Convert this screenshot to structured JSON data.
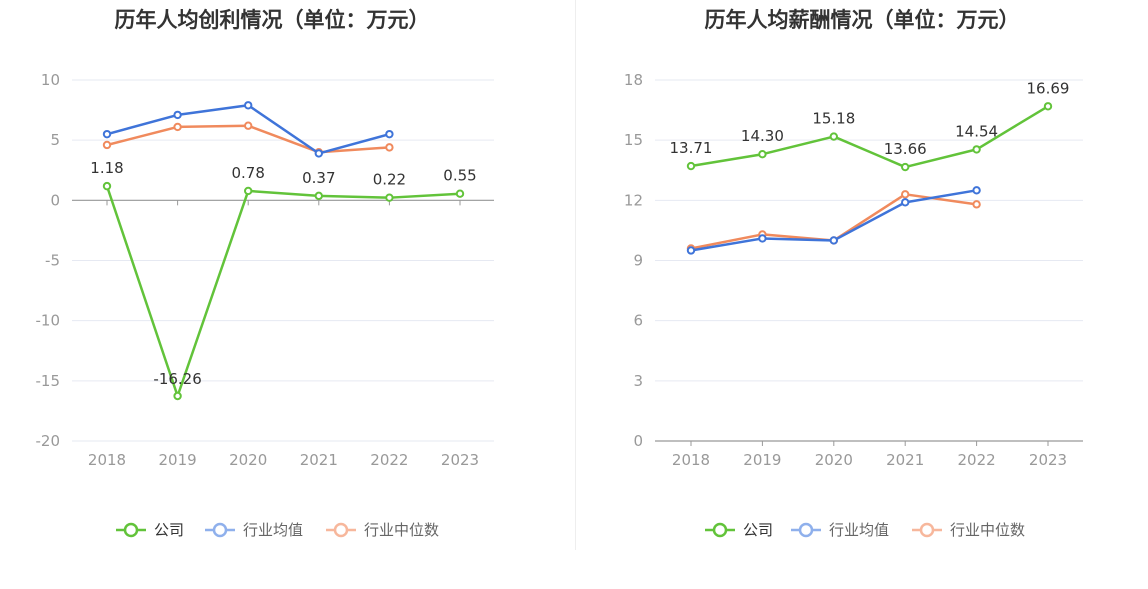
{
  "chart_data": [
    {
      "type": "line",
      "title": "历年人均创利情况（单位：万元）",
      "categories": [
        "2018",
        "2019",
        "2020",
        "2021",
        "2022",
        "2023"
      ],
      "ylim": [
        -20,
        10
      ],
      "yticks": [
        "10",
        "5",
        "0",
        "-5",
        "-10",
        "-15",
        "-20"
      ],
      "grid": true,
      "legend_position": "bottom-center",
      "series": [
        {
          "name": "公司",
          "color": "#62c33a",
          "values": [
            1.18,
            -16.26,
            0.78,
            0.37,
            0.22,
            0.55
          ],
          "labels": [
            "1.18",
            "-16.26",
            "0.78",
            "0.37",
            "0.22",
            "0.55"
          ]
        },
        {
          "name": "行业均值",
          "color": "#3f74d9",
          "values": [
            5.5,
            7.1,
            7.9,
            3.9,
            5.5,
            null
          ]
        },
        {
          "name": "行业中位数",
          "color": "#f08a5d",
          "values": [
            4.6,
            6.1,
            6.2,
            4.0,
            4.4,
            null
          ]
        }
      ]
    },
    {
      "type": "line",
      "title": "历年人均薪酬情况（单位：万元）",
      "categories": [
        "2018",
        "2019",
        "2020",
        "2021",
        "2022",
        "2023"
      ],
      "ylim": [
        0,
        18
      ],
      "yticks": [
        "18",
        "15",
        "12",
        "9",
        "6",
        "3",
        "0"
      ],
      "grid": true,
      "legend_position": "bottom-center",
      "series": [
        {
          "name": "公司",
          "color": "#62c33a",
          "values": [
            13.71,
            14.3,
            15.18,
            13.66,
            14.54,
            16.69
          ],
          "labels": [
            "13.71",
            "14.30",
            "15.18",
            "13.66",
            "14.54",
            "16.69"
          ]
        },
        {
          "name": "行业均值",
          "color": "#3f74d9",
          "values": [
            9.5,
            10.1,
            10.0,
            11.9,
            12.5,
            null
          ]
        },
        {
          "name": "行业中位数",
          "color": "#f08a5d",
          "values": [
            9.6,
            10.3,
            10.0,
            12.3,
            11.8,
            null
          ]
        }
      ]
    }
  ],
  "legend": {
    "items": [
      "公司",
      "行业均值",
      "行业中位数"
    ],
    "colors": [
      "#62c33a",
      "#8fb0ec",
      "#f7b79c"
    ]
  }
}
